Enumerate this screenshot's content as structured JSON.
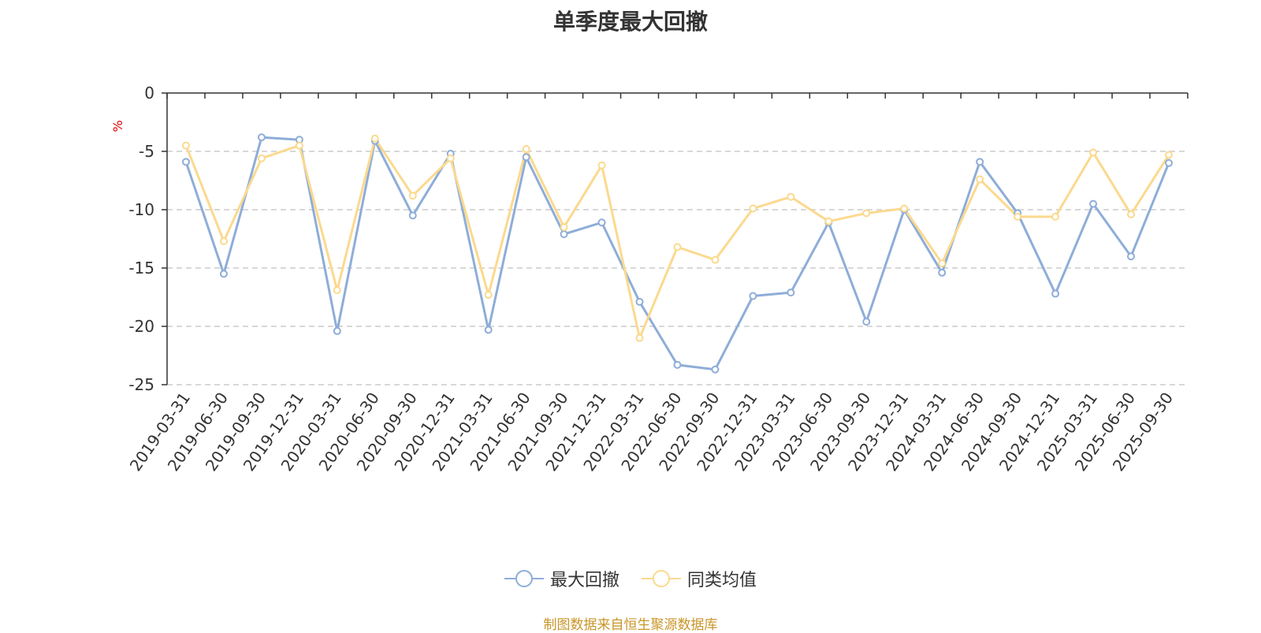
{
  "chart_data": {
    "type": "line",
    "title": "单季度最大回撤",
    "ylabel": "%",
    "ylim": [
      -25,
      0
    ],
    "yticks": [
      0,
      -5,
      -10,
      -15,
      -20,
      -25
    ],
    "grid": true,
    "legend_position": "bottom",
    "categories": [
      "2019-03-31",
      "2019-06-30",
      "2019-09-30",
      "2019-12-31",
      "2020-03-31",
      "2020-06-30",
      "2020-09-30",
      "2020-12-31",
      "2021-03-31",
      "2021-06-30",
      "2021-09-30",
      "2021-12-31",
      "2022-03-31",
      "2022-06-30",
      "2022-09-30",
      "2022-12-31",
      "2023-03-31",
      "2023-06-30",
      "2023-09-30",
      "2023-12-31",
      "2024-03-31",
      "2024-06-30",
      "2024-09-30",
      "2024-12-31",
      "2025-03-31",
      "2025-06-30",
      "2025-09-30"
    ],
    "series": [
      {
        "name": "最大回撤",
        "color": "#8eadd8",
        "values": [
          -5.9,
          -15.5,
          -3.8,
          -4.0,
          -20.4,
          -4.1,
          -10.5,
          -5.2,
          -20.3,
          -5.5,
          -12.1,
          -11.1,
          -17.9,
          -23.3,
          -23.7,
          -17.4,
          -17.1,
          -11.1,
          -19.6,
          -10.0,
          -15.4,
          -5.9,
          -10.3,
          -17.2,
          -9.5,
          -14.0,
          -6.0
        ]
      },
      {
        "name": "同类均值",
        "color": "#fbd98e",
        "values": [
          -4.5,
          -12.7,
          -5.6,
          -4.5,
          -16.9,
          -3.9,
          -8.8,
          -5.6,
          -17.3,
          -4.8,
          -11.5,
          -6.2,
          -21.0,
          -13.2,
          -14.3,
          -9.9,
          -8.9,
          -11.0,
          -10.3,
          -9.9,
          -14.6,
          -7.4,
          -10.6,
          -10.6,
          -5.1,
          -10.4,
          -5.3
        ]
      }
    ]
  },
  "source": "制图数据来自恒生聚源数据库"
}
